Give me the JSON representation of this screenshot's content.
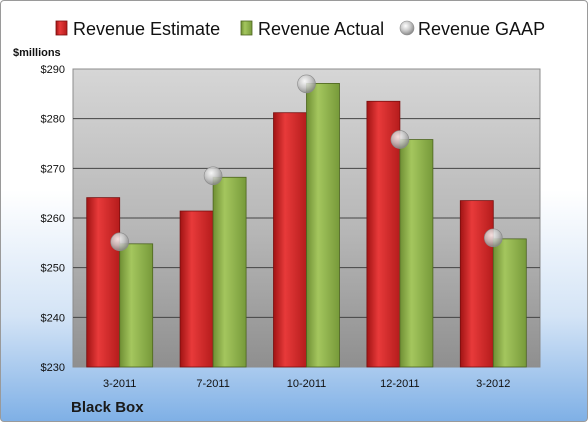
{
  "chart_data": {
    "type": "bar",
    "categories": [
      "3-2011",
      "7-2011",
      "10-2011",
      "12-2011",
      "3-2012"
    ],
    "series": [
      {
        "name": "Revenue Estimate",
        "kind": "bar",
        "values": [
          264.1,
          261.4,
          281.2,
          283.5,
          263.5
        ],
        "color": "#d42a2a"
      },
      {
        "name": "Revenue Actual",
        "kind": "bar",
        "values": [
          254.8,
          268.2,
          287.1,
          275.8,
          255.8
        ],
        "color": "#8fb34a"
      },
      {
        "name": "Revenue GAAP",
        "kind": "marker",
        "values": [
          255.2,
          268.5,
          287.0,
          275.8,
          256.0
        ],
        "color": "#bdbdbd"
      }
    ],
    "ylabel": "$millions",
    "ylim": [
      230,
      290
    ],
    "yticks": [
      "$230",
      "$240",
      "$250",
      "$260",
      "$270",
      "$280",
      "$290"
    ],
    "grid": true,
    "legend": "top",
    "company": "Black Box"
  }
}
